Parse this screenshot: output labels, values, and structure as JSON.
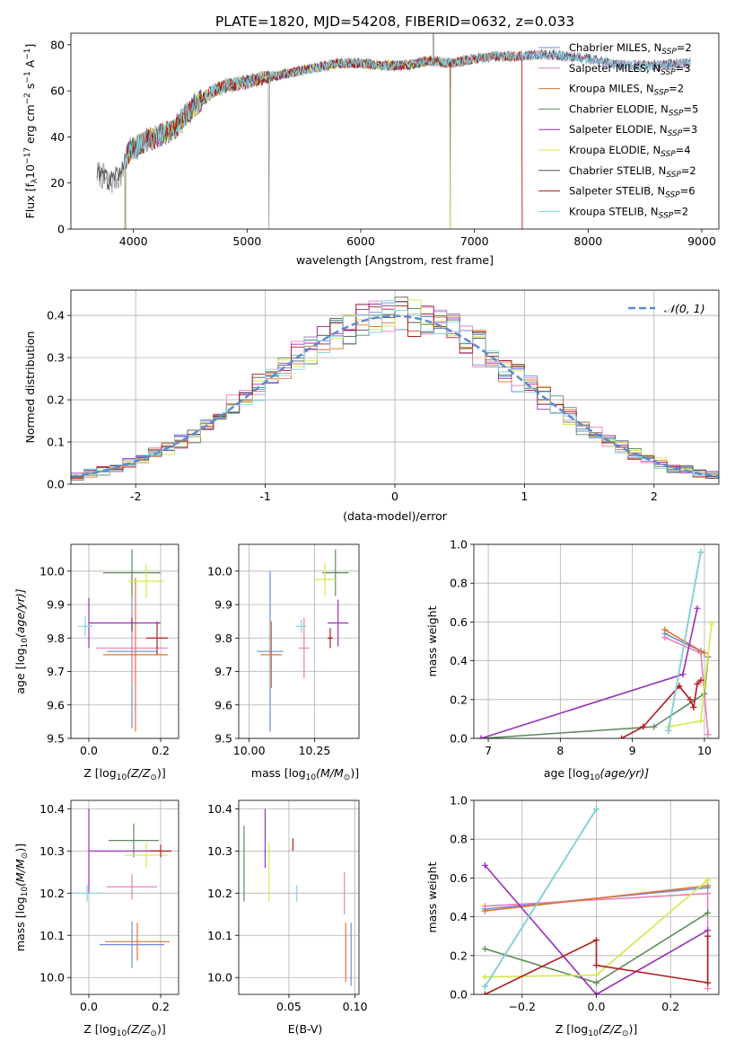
{
  "figure": {
    "title": "PLATE=1820, MJD=54208, FIBERID=0632, z=0.033"
  },
  "chart_data": [
    {
      "id": "spectrum",
      "type": "line",
      "xlabel": "wavelength [Angstrom, rest frame]",
      "ylabel_parts": [
        "Flux [f",
        "λ",
        "10",
        "−17",
        " erg cm",
        "−2",
        " s",
        "−1",
        " A",
        "−1",
        "]"
      ],
      "xlim": [
        3450,
        9150
      ],
      "ylim": [
        0,
        85
      ],
      "xticks": [
        4000,
        5000,
        6000,
        7000,
        8000,
        9000
      ],
      "yticks": [
        0,
        20,
        40,
        60,
        80
      ],
      "legend_position": "right",
      "grid": false,
      "anchor_x": [
        3700,
        3800,
        3900,
        3950,
        4000,
        4100,
        4200,
        4300,
        4400,
        4500,
        4600,
        4700,
        4800,
        4900,
        5000,
        5200,
        5400,
        5600,
        5800,
        6000,
        6200,
        6400,
        6600,
        6800,
        7000,
        7200,
        7400,
        7600,
        7800,
        8000,
        8200,
        8400,
        8600,
        8800,
        8900
      ],
      "anchor_y": [
        24,
        20,
        24,
        33,
        35,
        38,
        40,
        42,
        45,
        52,
        56,
        60,
        62,
        63,
        64,
        66,
        68,
        70,
        72,
        72,
        71,
        71,
        73,
        72,
        74,
        75,
        75,
        76,
        75,
        74,
        72,
        71,
        71,
        72,
        72
      ],
      "series": [
        {
          "name_parts": [
            "Chabrier MILES, N",
            "SSP",
            "=2"
          ],
          "color": "#6b8ed6",
          "cut_start": 3930,
          "cut_end": 9150
        },
        {
          "name_parts": [
            "Salpeter MILES, N",
            "SSP",
            "=3"
          ],
          "color": "#e97fb8",
          "cut_start": 3930,
          "cut_end": 9150
        },
        {
          "name_parts": [
            "Kroupa MILES, N",
            "SSP",
            "=2"
          ],
          "color": "#e0752f",
          "cut_start": 3930,
          "cut_end": 7420
        },
        {
          "name_parts": [
            "Chabrier ELODIE, N",
            "SSP",
            "=5"
          ],
          "color": "#5e8c5a",
          "cut_start": 3930,
          "cut_end": 6790
        },
        {
          "name_parts": [
            "Salpeter ELODIE, N",
            "SSP",
            "=3"
          ],
          "color": "#9a2fb8",
          "cut_start": 3930,
          "cut_end": 6790
        },
        {
          "name_parts": [
            "Kroupa ELODIE, N",
            "SSP",
            "=4"
          ],
          "color": "#d4e84a",
          "cut_start": 3920,
          "cut_end": 6790
        },
        {
          "name_parts": [
            "Chabrier STELIB, N",
            "SSP",
            "=2"
          ],
          "color": "#555555",
          "cut_start": 3680,
          "cut_end": 9150
        },
        {
          "name_parts": [
            "Salpeter STELIB, N",
            "SSP",
            "=6"
          ],
          "color": "#b01c1c",
          "cut_start": 3930,
          "cut_end": 7420
        },
        {
          "name_parts": [
            "Kroupa STELIB, N",
            "SSP",
            "=2"
          ],
          "color": "#7fd6e3",
          "cut_start": 3930,
          "cut_end": 9150
        }
      ],
      "data_line": {
        "color": "#999999",
        "gap_at": [
          5190,
          6790
        ],
        "spike_at": 6640
      }
    },
    {
      "id": "residuals",
      "type": "histogram",
      "xlabel": "(data-model)/error",
      "ylabel": "Normed distribution",
      "xlim": [
        -2.5,
        2.5
      ],
      "ylim": [
        0,
        0.46
      ],
      "xticks": [
        -2,
        -1,
        0,
        1,
        2
      ],
      "yticks": [
        0.0,
        0.1,
        0.2,
        0.3,
        0.4
      ],
      "grid": true,
      "bin_width": 0.1,
      "legend": "𝒩(0, 1)",
      "normal_color": "#5b8ad6",
      "series_colors": [
        "#6b8ed6",
        "#e97fb8",
        "#e0752f",
        "#5e8c5a",
        "#9a2fb8",
        "#d4e84a",
        "#555555",
        "#b01c1c",
        "#7fd6e3"
      ]
    },
    {
      "id": "age-vs-Z",
      "type": "errorbar",
      "xlabel_parts": [
        "Z [log",
        "10",
        "(Z/Z",
        "⊙",
        ")]"
      ],
      "ylabel_parts": [
        "age  [log",
        "10",
        "(age/yr)]"
      ],
      "xlim": [
        -0.05,
        0.25
      ],
      "ylim": [
        9.5,
        10.08
      ],
      "xticks": [
        0.0,
        0.2
      ],
      "yticks": [
        9.5,
        9.6,
        9.7,
        9.8,
        9.9,
        10.0
      ],
      "grid": true,
      "points": [
        {
          "color": "#6b8ed6",
          "x": 0.12,
          "y": 9.76,
          "xerr": 0.07,
          "yerr": 0.23
        },
        {
          "color": "#e97fb8",
          "x": 0.12,
          "y": 9.77,
          "xerr": 0.1,
          "yerr": 0.11
        },
        {
          "color": "#e0752f",
          "x": 0.13,
          "y": 9.75,
          "xerr": 0.09,
          "yerr": 0.23
        },
        {
          "color": "#5e8c5a",
          "x": 0.12,
          "y": 9.995,
          "xerr": 0.08,
          "yerr": 0.07
        },
        {
          "color": "#9a2fb8",
          "x": 0.0,
          "y": 9.845,
          "xerr": 0.0,
          "yerr": 0.075
        },
        {
          "color": "#d4e84a",
          "x": 0.16,
          "y": 9.97,
          "xerr": 0.05,
          "yerr": 0.05
        },
        {
          "color": "#555555",
          "x": 0.12,
          "y": 9.84,
          "xerr": 0.0,
          "yerr": 0.02
        },
        {
          "color": "#b01c1c",
          "x": 0.19,
          "y": 9.8,
          "xerr": 0.03,
          "yerr": 0.05
        },
        {
          "color": "#7fd6e3",
          "x": -0.01,
          "y": 9.835,
          "xerr": 0.02,
          "yerr": 0.03
        },
        {
          "color": "#9a2fb8",
          "x": 0.0,
          "y": 9.845,
          "xerr": 0.0,
          "yerr": 0.0,
          "xerrR": 0.2
        }
      ]
    },
    {
      "id": "age-vs-mass",
      "type": "errorbar",
      "xlabel_parts": [
        "mass [log",
        "10",
        "(M/M",
        "⊙",
        ")]"
      ],
      "xlim": [
        9.96,
        10.42
      ],
      "ylim": [
        9.5,
        10.08
      ],
      "xticks": [
        10.0,
        10.25
      ],
      "yticks": [
        9.5,
        9.6,
        9.7,
        9.8,
        9.9,
        10.0
      ],
      "grid": true,
      "points": [
        {
          "color": "#6b8ed6",
          "x": 10.08,
          "y": 9.76,
          "xerr": 0.05,
          "yerr": 0.24
        },
        {
          "color": "#e0752f",
          "x": 10.085,
          "y": 9.75,
          "xerr": 0.04,
          "yerr": 0.1
        },
        {
          "color": "#e97fb8",
          "x": 10.21,
          "y": 9.77,
          "xerr": 0.02,
          "yerr": 0.09
        },
        {
          "color": "#5e8c5a",
          "x": 10.33,
          "y": 9.995,
          "xerr": 0.05,
          "yerr": 0.07
        },
        {
          "color": "#d4e84a",
          "x": 10.29,
          "y": 9.975,
          "xerr": 0.04,
          "yerr": 0.05
        },
        {
          "color": "#9a2fb8",
          "x": 10.34,
          "y": 9.845,
          "xerr": 0.04,
          "yerr": 0.07
        },
        {
          "color": "#b01c1c",
          "x": 10.31,
          "y": 9.8,
          "xerr": 0.01,
          "yerr": 0.03
        },
        {
          "color": "#7fd6e3",
          "x": 10.2,
          "y": 9.835,
          "xerr": 0.02,
          "yerr": 0.02
        }
      ]
    },
    {
      "id": "weight-vs-age",
      "type": "line",
      "xlabel_parts": [
        "age  [log",
        "10",
        "(age/yr)]"
      ],
      "ylabel": "mass weight",
      "xlim": [
        6.8,
        10.2
      ],
      "ylim": [
        0,
        1.0
      ],
      "xticks": [
        7,
        8,
        9,
        10
      ],
      "yticks": [
        0.0,
        0.2,
        0.4,
        0.6,
        0.8,
        1.0
      ],
      "grid": true,
      "series": [
        {
          "color": "#6b8ed6",
          "x": [
            9.45,
            9.95
          ],
          "y": [
            0.54,
            0.45
          ]
        },
        {
          "color": "#e97fb8",
          "x": [
            9.45,
            9.95,
            10.05
          ],
          "y": [
            0.52,
            0.44,
            0.02
          ]
        },
        {
          "color": "#e0752f",
          "x": [
            9.45,
            10.0
          ],
          "y": [
            0.56,
            0.44
          ]
        },
        {
          "color": "#5e8c5a",
          "x": [
            6.9,
            9.3,
            10.0,
            10.05
          ],
          "y": [
            0.0,
            0.06,
            0.23,
            0.42
          ]
        },
        {
          "color": "#9a2fb8",
          "x": [
            6.9,
            9.7,
            9.9
          ],
          "y": [
            0.0,
            0.33,
            0.67
          ]
        },
        {
          "color": "#d4e84a",
          "x": [
            9.5,
            9.95,
            10.0,
            10.1
          ],
          "y": [
            0.06,
            0.09,
            0.27,
            0.59
          ]
        },
        {
          "color": "#555555",
          "x": [
            9.5,
            9.95
          ],
          "y": [
            0.04,
            0.96
          ]
        },
        {
          "color": "#b01c1c",
          "x": [
            8.85,
            9.15,
            9.65,
            9.8,
            9.85,
            9.9,
            9.95
          ],
          "y": [
            0.0,
            0.06,
            0.27,
            0.2,
            0.16,
            0.28,
            0.3
          ]
        },
        {
          "color": "#7fd6e3",
          "x": [
            9.5,
            9.95
          ],
          "y": [
            0.04,
            0.96
          ]
        }
      ]
    },
    {
      "id": "mass-vs-Z",
      "type": "errorbar",
      "xlabel_parts": [
        "Z [log",
        "10",
        "(Z/Z",
        "⊙",
        ")]"
      ],
      "ylabel_parts": [
        "mass [log",
        "10",
        "(M/M",
        "⊙",
        ")]"
      ],
      "xlim": [
        -0.05,
        0.25
      ],
      "ylim": [
        9.96,
        10.42
      ],
      "xticks": [
        0.0,
        0.2
      ],
      "yticks": [
        10.0,
        10.1,
        10.2,
        10.3,
        10.4
      ],
      "grid": true,
      "points": [
        {
          "color": "#6b8ed6",
          "x": 0.12,
          "y": 10.078,
          "xerr": 0.09,
          "yerr": 0.055
        },
        {
          "color": "#e0752f",
          "x": 0.135,
          "y": 10.085,
          "xerr": 0.09,
          "yerr": 0.045
        },
        {
          "color": "#e97fb8",
          "x": 0.12,
          "y": 10.215,
          "xerr": 0.07,
          "yerr": 0.03
        },
        {
          "color": "#5e8c5a",
          "x": 0.125,
          "y": 10.325,
          "xerr": 0.07,
          "yerr": 0.04
        },
        {
          "color": "#d4e84a",
          "x": 0.16,
          "y": 10.29,
          "xerr": 0.06,
          "yerr": 0.03
        },
        {
          "color": "#9a2fb8",
          "x": 0.0,
          "y": 10.3,
          "xerr": 0.0,
          "yerr": 0.1,
          "xerrR": 0.2
        },
        {
          "color": "#b01c1c",
          "x": 0.2,
          "y": 10.3,
          "xerr": 0.03,
          "yerr": 0.015
        },
        {
          "color": "#7fd6e3",
          "x": -0.005,
          "y": 10.2,
          "xerr": 0.04,
          "yerr": 0.02
        }
      ]
    },
    {
      "id": "mass-vs-EBV",
      "type": "errorbar",
      "xlabel": "E(B-V)",
      "xlim": [
        0.012,
        0.103
      ],
      "ylim": [
        9.96,
        10.42
      ],
      "xticks": [
        0.05,
        0.1
      ],
      "tick_labels": [
        "0.05",
        "0.10"
      ],
      "yticks": [
        10.0,
        10.1,
        10.2,
        10.3,
        10.4
      ],
      "grid": true,
      "points": [
        {
          "color": "#5e8c5a",
          "x": 0.016,
          "y": 10.27,
          "xerr": 0,
          "yerr": 0.09
        },
        {
          "color": "#9a2fb8",
          "x": 0.032,
          "y": 10.33,
          "xerr": 0,
          "yerr": 0.07
        },
        {
          "color": "#d4e84a",
          "x": 0.035,
          "y": 10.25,
          "xerr": 0,
          "yerr": 0.07
        },
        {
          "color": "#b01c1c",
          "x": 0.053,
          "y": 10.315,
          "xerr": 0,
          "yerr": 0.015
        },
        {
          "color": "#7fd6e3",
          "x": 0.056,
          "y": 10.2,
          "xerr": 0,
          "yerr": 0.02
        },
        {
          "color": "#e97fb8",
          "x": 0.092,
          "y": 10.2,
          "xerr": 0,
          "yerr": 0.05
        },
        {
          "color": "#e0752f",
          "x": 0.093,
          "y": 10.06,
          "xerr": 0,
          "yerr": 0.07
        },
        {
          "color": "#6b8ed6",
          "x": 0.097,
          "y": 10.055,
          "xerr": 0,
          "yerr": 0.075
        }
      ]
    },
    {
      "id": "weight-vs-Z",
      "type": "line",
      "xlabel_parts": [
        "Z [log",
        "10",
        "(Z/Z",
        "⊙",
        ")]"
      ],
      "ylabel": "mass weight",
      "xlim": [
        -0.33,
        0.33
      ],
      "ylim": [
        0,
        1.0
      ],
      "xticks": [
        -0.2,
        0.0,
        0.2
      ],
      "tick_labels": [
        "−0.2",
        "0.0",
        "0.2"
      ],
      "yticks": [
        0.0,
        0.2,
        0.4,
        0.6,
        0.8,
        1.0
      ],
      "grid": true,
      "series": [
        {
          "color": "#6b8ed6",
          "x": [
            -0.3,
            0.3
          ],
          "y": [
            0.44,
            0.55
          ]
        },
        {
          "color": "#e97fb8",
          "x": [
            -0.3,
            0.3,
            0.3
          ],
          "y": [
            0.455,
            0.52,
            0.03
          ]
        },
        {
          "color": "#e0752f",
          "x": [
            -0.3,
            0.3
          ],
          "y": [
            0.43,
            0.56
          ]
        },
        {
          "color": "#5e8c5a",
          "x": [
            -0.3,
            0.0,
            0.3
          ],
          "y": [
            0.235,
            0.06,
            0.42
          ]
        },
        {
          "color": "#9a2fb8",
          "x": [
            -0.3,
            0.0,
            0.3
          ],
          "y": [
            0.665,
            0.0,
            0.33
          ]
        },
        {
          "color": "#d4e84a",
          "x": [
            -0.3,
            0.0,
            0.3
          ],
          "y": [
            0.09,
            0.1,
            0.59
          ]
        },
        {
          "color": "#555555",
          "x": [
            -0.3,
            0.0
          ],
          "y": [
            0.04,
            0.955
          ]
        },
        {
          "color": "#b01c1c",
          "x": [
            -0.3,
            0.0,
            0.0,
            0.3,
            0.3
          ],
          "y": [
            0.0,
            0.28,
            0.15,
            0.06,
            0.3
          ]
        },
        {
          "color": "#7fd6e3",
          "x": [
            -0.3,
            0.0
          ],
          "y": [
            0.04,
            0.955
          ]
        }
      ]
    }
  ]
}
